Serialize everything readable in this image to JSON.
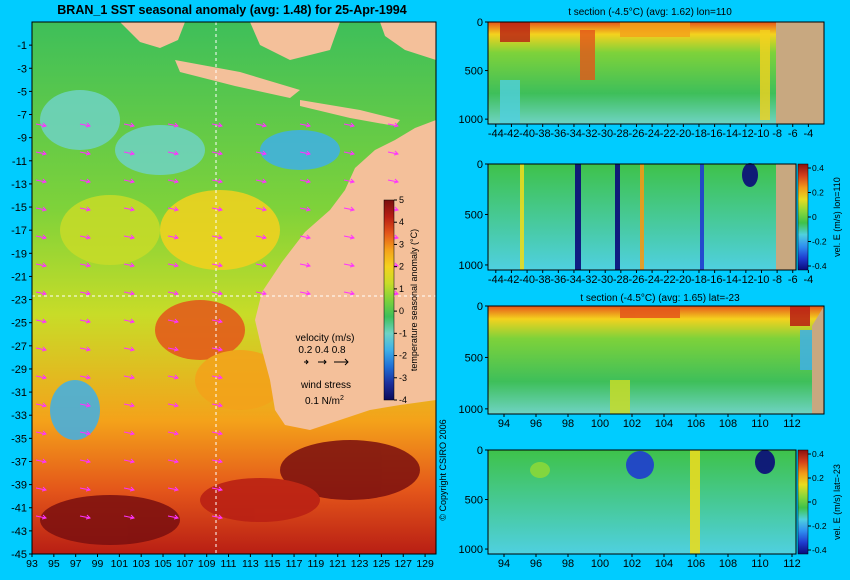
{
  "colors": {
    "background": "#00ccff",
    "land": "#f4c09a",
    "section_land": "#c8a880",
    "velocity_arrow": "#ff33ff"
  },
  "colormap_temp": [
    "#0a0a5a",
    "#1b2f9c",
    "#1f6fd6",
    "#3fb0e8",
    "#6fd3c4",
    "#3ebf5a",
    "#7ed23a",
    "#c8dc28",
    "#f4d21e",
    "#f4a21a",
    "#e4561a",
    "#b81e14",
    "#7a0f0f"
  ],
  "colormap_vel": [
    "#0a0a7a",
    "#1f3cd0",
    "#2f8ff0",
    "#4fd0e0",
    "#3ec24a",
    "#8ad83a",
    "#e8dc20",
    "#f09a18",
    "#d4401a",
    "#8a1010"
  ],
  "chart_data": [
    {
      "type": "heatmap",
      "title": "BRAN_1  SST seasonal anomaly (avg: 1.48) for 25-Apr-1994",
      "x_ticks": [
        "93",
        "95",
        "97",
        "99",
        "101",
        "103",
        "105",
        "107",
        "109",
        "111",
        "113",
        "115",
        "117",
        "119",
        "121",
        "123",
        "125",
        "127",
        "129"
      ],
      "y_ticks": [
        "-1",
        "-3",
        "-5",
        "-7",
        "-9",
        "-11",
        "-13",
        "-15",
        "-17",
        "-19",
        "-21",
        "-23",
        "-25",
        "-27",
        "-29",
        "-31",
        "-33",
        "-35",
        "-37",
        "-39",
        "-41",
        "-43",
        "-45"
      ],
      "xlim": [
        93,
        130
      ],
      "ylim": [
        -45,
        1
      ],
      "colorbar": {
        "label": "temperature seasonal anomaly (°C)",
        "ticks": [
          "5",
          "4",
          "3",
          "2",
          "1",
          "0",
          "-1",
          "-2",
          "-3",
          "-4"
        ],
        "range": [
          -4,
          5
        ]
      },
      "legend": {
        "velocity_title": "velocity (m/s)",
        "velocity_scale": "0.2 0.4 0.8",
        "wind_title": "wind stress",
        "wind_value": "0.1 N/m",
        "wind_exp": "2"
      },
      "copyright": "© Copyright CSIRO 2006"
    },
    {
      "type": "heatmap",
      "title": "t section (-4.5°C) (avg: 1.62) lon=110",
      "x_ticks": [
        "-44",
        "-42",
        "-40",
        "-38",
        "-36",
        "-34",
        "-32",
        "-30",
        "-28",
        "-26",
        "-24",
        "-22",
        "-20",
        "-18",
        "-16",
        "-14",
        "-12",
        "-10",
        "-8",
        "-6",
        "-4"
      ],
      "y_ticks": [
        "0",
        "500",
        "1000"
      ],
      "xlim": [
        -45,
        -2
      ],
      "ylim": [
        0,
        1050
      ]
    },
    {
      "type": "heatmap",
      "title": "",
      "x_ticks": [
        "-44",
        "-42",
        "-40",
        "-38",
        "-36",
        "-34",
        "-32",
        "-30",
        "-28",
        "-26",
        "-24",
        "-22",
        "-20",
        "-18",
        "-16",
        "-14",
        "-12",
        "-10",
        "-8",
        "-6",
        "-4"
      ],
      "y_ticks": [
        "0",
        "500",
        "1000"
      ],
      "xlim": [
        -45,
        -2
      ],
      "ylim": [
        0,
        1050
      ],
      "colorbar": {
        "label": "vel. E (m/s) lon=110",
        "ticks": [
          "0.4",
          "0.2",
          "0",
          "-0.2",
          "-0.4"
        ],
        "range": [
          -0.4,
          0.4
        ]
      }
    },
    {
      "type": "heatmap",
      "title": "t section (-4.5°C) (avg: 1.65) lat=-23",
      "x_ticks": [
        "94",
        "96",
        "98",
        "100",
        "102",
        "104",
        "106",
        "108",
        "110",
        "112"
      ],
      "y_ticks": [
        "0",
        "500",
        "1000"
      ],
      "xlim": [
        93,
        114
      ],
      "ylim": [
        0,
        1050
      ]
    },
    {
      "type": "heatmap",
      "title": "",
      "x_ticks": [
        "94",
        "96",
        "98",
        "100",
        "102",
        "104",
        "106",
        "108",
        "110",
        "112"
      ],
      "y_ticks": [
        "0",
        "500",
        "1000"
      ],
      "xlim": [
        93,
        114
      ],
      "ylim": [
        0,
        1050
      ],
      "colorbar": {
        "label": "vel. E (m/s) lat=-23",
        "ticks": [
          "0.4",
          "0.2",
          "0",
          "-0.2",
          "-0.4"
        ],
        "range": [
          -0.4,
          0.4
        ]
      }
    }
  ]
}
